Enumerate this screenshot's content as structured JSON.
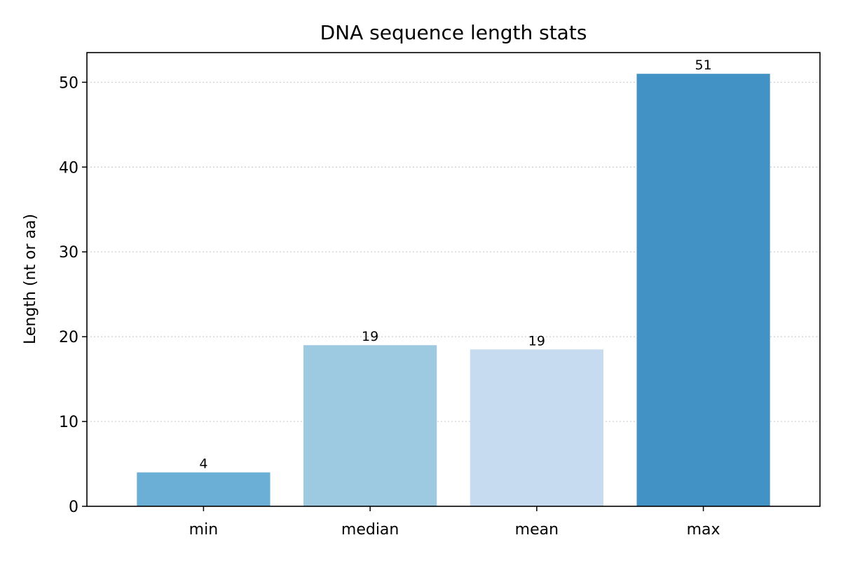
{
  "chart_data": {
    "type": "bar",
    "title": "DNA sequence length stats",
    "xlabel": "",
    "ylabel": "Length (nt or aa)",
    "categories": [
      "min",
      "median",
      "mean",
      "max"
    ],
    "values": [
      4,
      19,
      18.5,
      51
    ],
    "data_labels": [
      "4",
      "19",
      "19",
      "51"
    ],
    "colors": [
      "#6baed6",
      "#9ecae1",
      "#c6dbef",
      "#4292c6"
    ],
    "ylim": [
      0,
      53.5
    ],
    "yticks": [
      0,
      10,
      20,
      30,
      40,
      50
    ],
    "grid": "y-dotted",
    "legend": "none"
  }
}
